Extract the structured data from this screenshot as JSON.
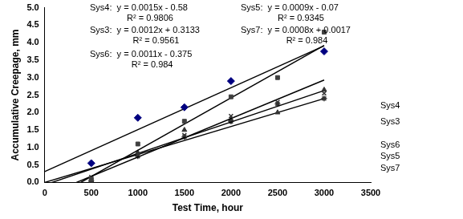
{
  "chart_data": {
    "type": "scatter",
    "x_label": "Test Time, hour",
    "y_label": "Accumulative Creepage, mm",
    "x": [
      500,
      1000,
      1500,
      2000,
      2500,
      3000
    ],
    "xlim": [
      0,
      3500
    ],
    "xticks": [
      0,
      500,
      1000,
      1500,
      2000,
      2500,
      3000,
      3500
    ],
    "ylim": [
      0,
      5
    ],
    "yticks": [
      {
        "value": 0,
        "label": "0.0"
      },
      0.5,
      {
        "value": 1,
        "label": "1.0"
      },
      1.5,
      {
        "value": 2,
        "label": "2.0"
      },
      2.5,
      {
        "value": 3,
        "label": "3.0"
      },
      3.5,
      {
        "value": 4,
        "label": "4.0"
      },
      4.5,
      {
        "value": 5,
        "label": "5.0"
      }
    ],
    "grid": false,
    "series": [
      {
        "name": "Sys4",
        "color": "#404040",
        "marker": "square",
        "values": [
          0.1,
          1.1,
          1.75,
          2.45,
          3.0,
          4.3
        ],
        "trend": {
          "x": [
            387,
            3000
          ],
          "values": [
            0,
            3.92
          ]
        },
        "equation": "Sys4:  y = 0.0015x - 0.58",
        "r2": "R² = 0.9806"
      },
      {
        "name": "Sys3",
        "color": "#000080",
        "marker": "diamond",
        "values": [
          0.55,
          1.85,
          2.15,
          2.9,
          null,
          3.75
        ],
        "trend": {
          "x": [
            0,
            3000
          ],
          "values": [
            0.31,
            3.91
          ]
        },
        "equation": "Sys3:  y = 0.0012x + 0.3133",
        "r2": "R² = 0.9561"
      },
      {
        "name": "Sys6",
        "color": "#333333",
        "marker": "x",
        "values": [
          0.15,
          0.8,
          1.35,
          1.9,
          2.3,
          2.55
        ],
        "trend": {
          "x": [
            341,
            3000
          ],
          "values": [
            0,
            2.93
          ]
        },
        "equation": "Sys6:  y = 0.0011x - 0.375",
        "r2": "R² = 0.984"
      },
      {
        "name": "Sys5",
        "color": "#333333",
        "marker": "triangle",
        "values": [
          0.05,
          0.85,
          1.5,
          1.8,
          2.0,
          2.65
        ],
        "trend": {
          "x": [
            78,
            3000
          ],
          "values": [
            0,
            2.63
          ]
        },
        "equation": "Sys5:  y = 0.0009x - 0.07",
        "r2": "R² = 0.9345"
      },
      {
        "name": "Sys7",
        "color": "#333333",
        "marker": "star",
        "values": [
          0.05,
          0.75,
          1.3,
          1.75,
          2.25,
          2.4
        ],
        "trend": {
          "x": [
            0,
            3000
          ],
          "values": [
            0,
            2.4
          ]
        },
        "equation": "Sys7:  y = 0.0008x + 0.0017",
        "r2": "R² = 0.984"
      }
    ]
  }
}
